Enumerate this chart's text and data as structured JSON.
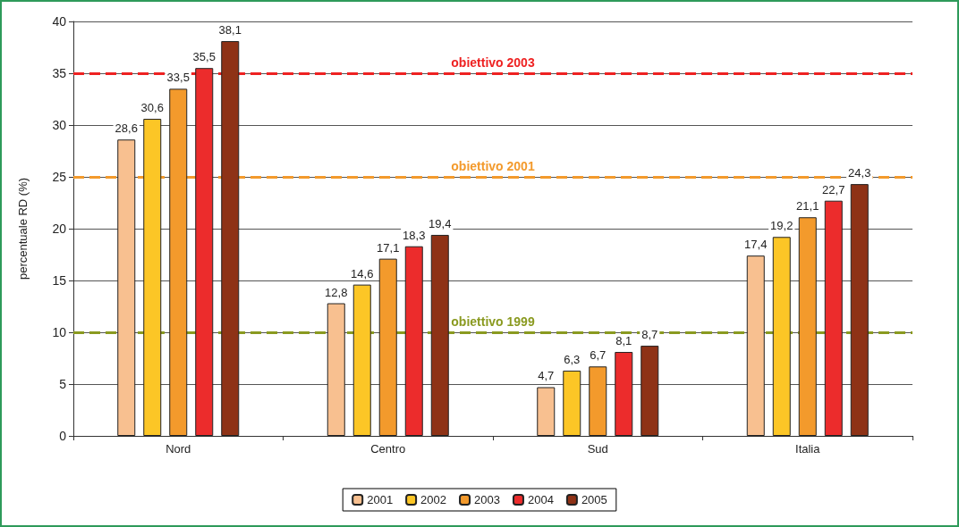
{
  "chart_data": {
    "type": "bar",
    "ylabel": "percentuale RD (%)",
    "categories": [
      "Nord",
      "Centro",
      "Sud",
      "Italia"
    ],
    "series": [
      {
        "name": "2001",
        "color": "#f8c090",
        "values": [
          28.6,
          12.8,
          4.7,
          17.4
        ],
        "value_labels": [
          "28,6",
          "12,8",
          "4,7",
          "17,4"
        ]
      },
      {
        "name": "2002",
        "color": "#fcc626",
        "values": [
          30.6,
          14.6,
          6.3,
          19.2
        ],
        "value_labels": [
          "30,6",
          "14,6",
          "6,3",
          "19,2"
        ]
      },
      {
        "name": "2003",
        "color": "#f39a2c",
        "values": [
          33.5,
          17.1,
          6.7,
          21.1
        ],
        "value_labels": [
          "33,5",
          "17,1",
          "6,7",
          "21,1"
        ]
      },
      {
        "name": "2004",
        "color": "#ec2c2c",
        "values": [
          35.5,
          18.3,
          8.1,
          22.7
        ],
        "value_labels": [
          "35,5",
          "18,3",
          "8,1",
          "22,7"
        ]
      },
      {
        "name": "2005",
        "color": "#8e3216",
        "values": [
          38.1,
          19.4,
          8.7,
          24.3
        ],
        "value_labels": [
          "38,1",
          "19,4",
          "8,7",
          "24,3"
        ]
      }
    ],
    "ylim": [
      0,
      40
    ],
    "yticks": [
      0,
      5,
      10,
      15,
      20,
      25,
      30,
      35,
      40
    ],
    "grid": "y",
    "legend": "bottom",
    "ref_lines": [
      {
        "axis": "y",
        "value": 35,
        "label": "obiettivo 2003",
        "color": "#ee2222",
        "line_style": "dashed"
      },
      {
        "axis": "y",
        "value": 25,
        "label": "obiettivo 2001",
        "color": "#f39a2c",
        "line_style": "dashed"
      },
      {
        "axis": "y",
        "value": 10,
        "label": "obiettivo 1999",
        "color": "#8a9a20",
        "line_style": "dashed"
      }
    ]
  }
}
